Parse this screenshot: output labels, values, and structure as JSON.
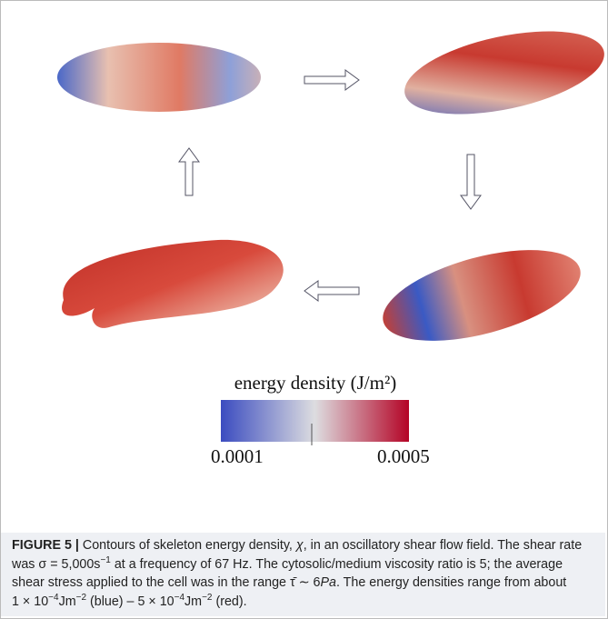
{
  "colorbar": {
    "title": "energy density (J/m²)",
    "min_label": "0.0001",
    "max_label": "0.0005"
  },
  "caption": {
    "label": "FIGURE 5 |",
    "parts": [
      "Contours of skeleton energy density, ",
      "χ",
      ", in an oscillatory shear flow field. The shear rate was ",
      "σ = 5,000s",
      "−1",
      " at a frequency of 67 Hz. The cytosolic/medium viscosity ratio is 5; the average shear stress applied to the cell was in the range ",
      "τ̄ ∼ 6",
      "Pa",
      ". The energy densities range from about ",
      "1 × 10",
      "−4",
      "Jm",
      "−2",
      " (blue) – 5 × 10",
      "−4",
      "Jm",
      "−2",
      " (red)."
    ]
  }
}
